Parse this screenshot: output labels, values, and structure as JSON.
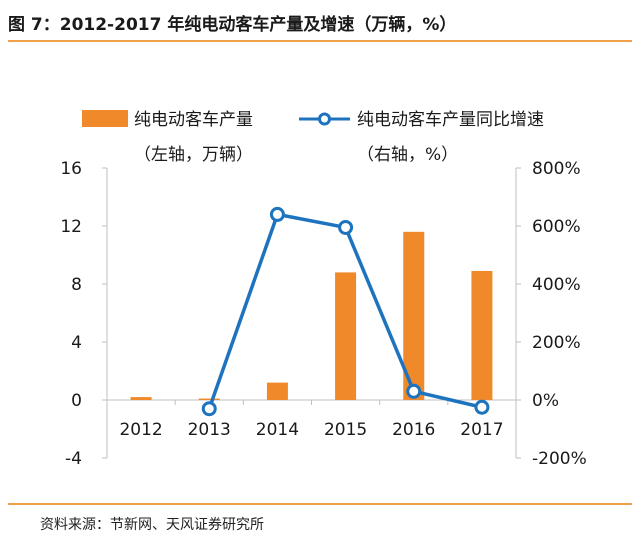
{
  "figure": {
    "title": "图 7：2012-2017 年纯电动客车产量及增速（万辆，%）",
    "source": "资料来源：节新网、天风证券研究所"
  },
  "chart_data": {
    "type": "bar",
    "categories": [
      "2012",
      "2013",
      "2014",
      "2015",
      "2016",
      "2017"
    ],
    "series": [
      {
        "name": "纯电动客车产量",
        "name_note": "（左轴，万辆）",
        "type": "bar",
        "axis": "left",
        "values": [
          0.2,
          0.1,
          1.2,
          8.8,
          11.6,
          8.9
        ]
      },
      {
        "name": "纯电动客车产量同比增速",
        "name_note": "（右轴，%）",
        "type": "line",
        "axis": "right",
        "values": [
          null,
          -30,
          640,
          595,
          30,
          -25
        ]
      }
    ],
    "y_left": {
      "min": -4,
      "max": 16,
      "ticks": [
        "-4",
        "0",
        "4",
        "8",
        "12",
        "16"
      ]
    },
    "y_right": {
      "min": -200,
      "max": 800,
      "ticks": [
        "-200%",
        "0%",
        "200%",
        "400%",
        "600%",
        "800%"
      ]
    },
    "legend_position": "top",
    "grid": false,
    "colors": {
      "bar": "#f0892a",
      "line": "#1e73be",
      "axis": "#bfbfbf"
    }
  }
}
